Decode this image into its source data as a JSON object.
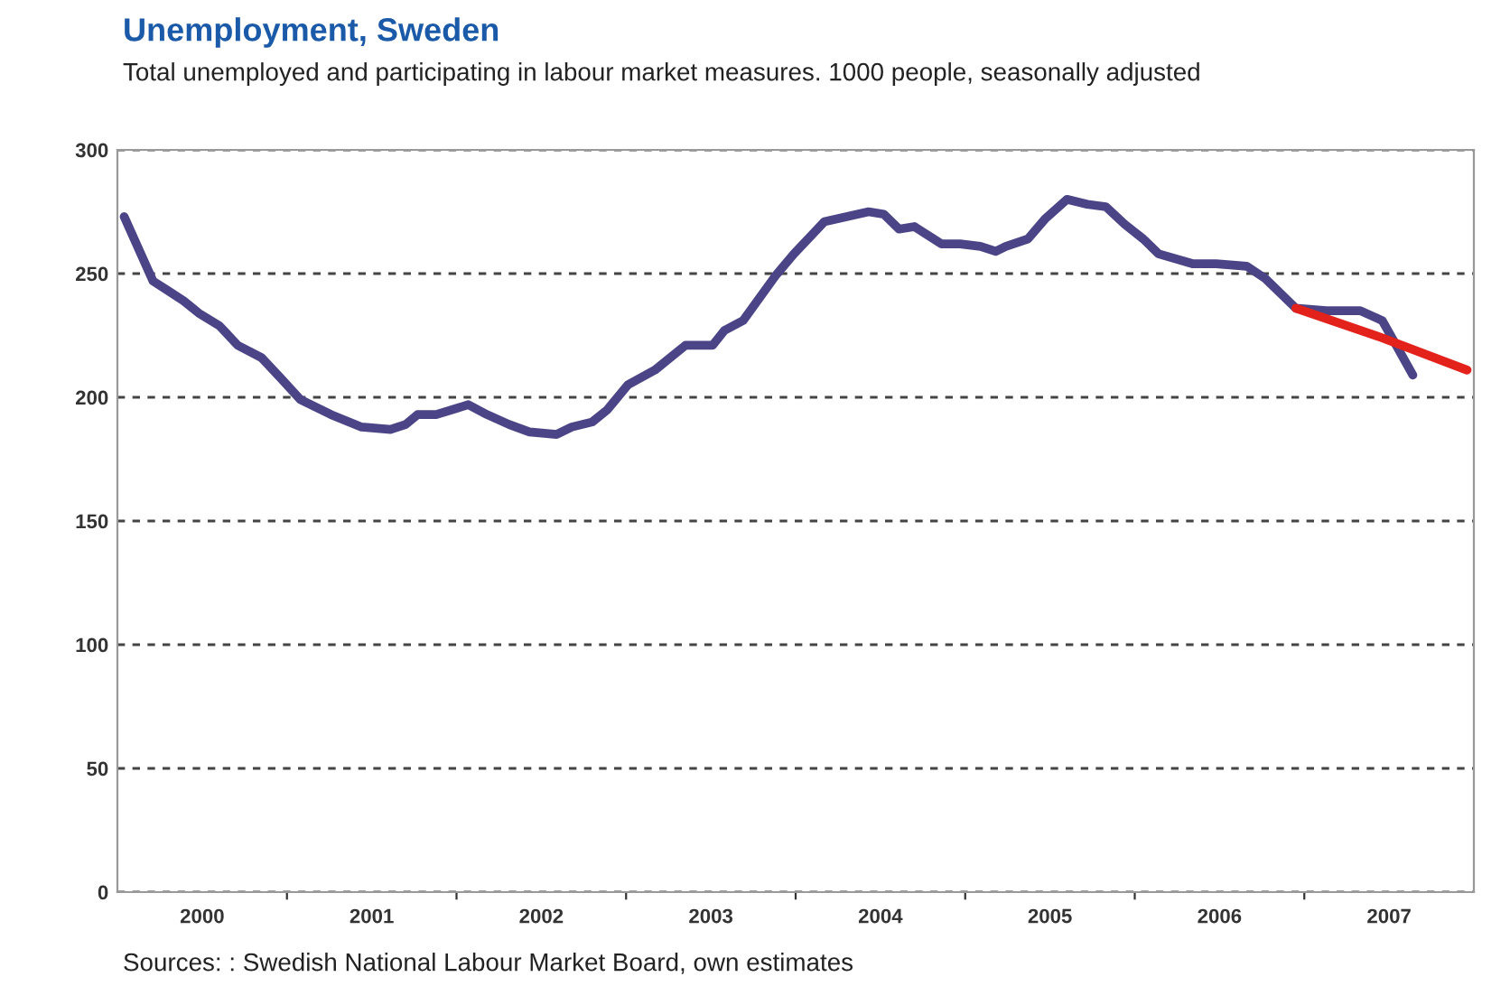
{
  "chart_data": {
    "type": "line",
    "title": "Unemployment, Sweden",
    "subtitle": "Total unemployed and participating in labour market measures. 1000 people, seasonally adjusted",
    "series": [
      {
        "color": "#4b4588",
        "x": [
          2000.04,
          2000.21,
          2000.3,
          2000.39,
          2000.48,
          2000.6,
          2000.71,
          2000.85,
          2000.96,
          2001.08,
          2001.26,
          2001.44,
          2001.61,
          2001.7,
          2001.77,
          2001.88,
          2002.07,
          2002.18,
          2002.31,
          2002.43,
          2002.59,
          2002.68,
          2002.8,
          2002.89,
          2003.01,
          2003.17,
          2003.35,
          2003.51,
          2003.58,
          2003.69,
          2003.88,
          2003.99,
          2004.17,
          2004.43,
          2004.52,
          2004.61,
          2004.7,
          2004.86,
          2004.97,
          2005.09,
          2005.18,
          2005.24,
          2005.37,
          2005.47,
          2005.6,
          2005.72,
          2005.83,
          2005.94,
          2006.05,
          2006.14,
          2006.34,
          2006.48,
          2006.66,
          2006.77,
          2006.95,
          2007.13,
          2007.33,
          2007.46,
          2007.55,
          2007.64
        ],
        "values": [
          273,
          247,
          243,
          239,
          234,
          229,
          221,
          216,
          208,
          199,
          193,
          188,
          187,
          189,
          193,
          193,
          197,
          193,
          189,
          186,
          185,
          188,
          190,
          195,
          205,
          211,
          221,
          221,
          227,
          231,
          249,
          258,
          271,
          275,
          274,
          268,
          269,
          262,
          262,
          261,
          259,
          261,
          264,
          272,
          280,
          278,
          277,
          270,
          264,
          258,
          254,
          254,
          253,
          248,
          236,
          235,
          235,
          231,
          220,
          209
        ]
      },
      {
        "color": "#e3221c",
        "x": [
          2006.95,
          2007.46,
          2007.96
        ],
        "values": [
          236,
          224,
          211
        ]
      }
    ],
    "xlim": [
      2000,
      2008
    ],
    "xticks": [
      {
        "value": 2000.5,
        "label": "2000"
      },
      {
        "value": 2001,
        "label": null
      },
      {
        "value": 2001.5,
        "label": "2001"
      },
      {
        "value": 2002,
        "label": null
      },
      {
        "value": 2002.5,
        "label": "2002"
      },
      {
        "value": 2003,
        "label": null
      },
      {
        "value": 2003.5,
        "label": "2003"
      },
      {
        "value": 2004,
        "label": null
      },
      {
        "value": 2004.5,
        "label": "2004"
      },
      {
        "value": 2005,
        "label": null
      },
      {
        "value": 2005.5,
        "label": "2005"
      },
      {
        "value": 2006,
        "label": null
      },
      {
        "value": 2006.5,
        "label": "2006"
      },
      {
        "value": 2007,
        "label": null
      },
      {
        "value": 2007.5,
        "label": "2007"
      }
    ],
    "ylim": [
      0,
      300
    ],
    "yticks": [
      0,
      50,
      100,
      150,
      200,
      250,
      300
    ],
    "grid": "y",
    "line_style": "solid",
    "annotations": [
      "Sources: : Swedish National Labour Market Board, own estimates"
    ]
  }
}
